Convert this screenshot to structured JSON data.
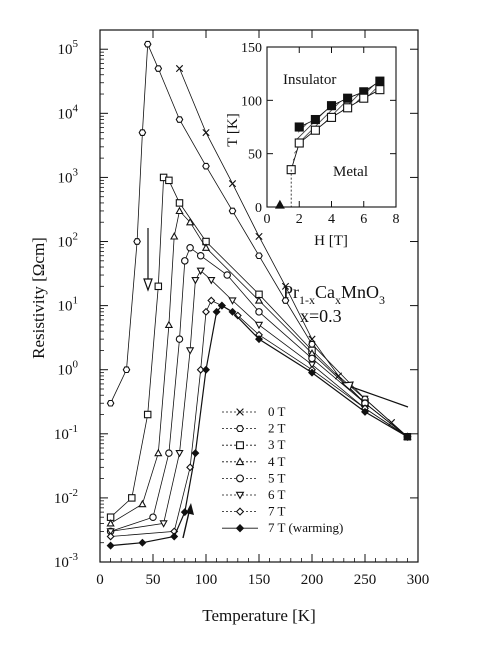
{
  "chart_data": [
    {
      "type": "scatter",
      "xlabel": "Temperature [K]",
      "ylabel": "Resistivity [Ωcm]",
      "xlim": [
        0,
        300
      ],
      "ylim_log10": [
        -3,
        5.3
      ],
      "y_scale": "log",
      "x_ticks": [
        "0",
        "50",
        "100",
        "150",
        "200",
        "250",
        "300"
      ],
      "y_ticks": [
        {
          "base": "10",
          "exp": "-3"
        },
        {
          "base": "10",
          "exp": "-2"
        },
        {
          "base": "10",
          "exp": "-1"
        },
        {
          "base": "10",
          "exp": "0"
        },
        {
          "base": "10",
          "exp": "1"
        },
        {
          "base": "10",
          "exp": "2"
        },
        {
          "base": "10",
          "exp": "3"
        },
        {
          "base": "10",
          "exp": "4"
        },
        {
          "base": "10",
          "exp": "5"
        }
      ],
      "grid": false,
      "legend_position": "bottom-center",
      "annotation": {
        "formula_main": "Pr",
        "formula_sub1": "1-x",
        "formula_mid": "Ca",
        "formula_sub2": "x",
        "formula_end": "MnO",
        "formula_sub3": "3",
        "composition": "x=0.3"
      },
      "series": [
        {
          "name": "0 T",
          "marker": "x",
          "x": [
            75,
            100,
            125,
            150,
            175,
            200,
            225,
            250,
            275,
            290
          ],
          "y": [
            50000,
            5000,
            800,
            120,
            20,
            3,
            0.8,
            0.35,
            0.15,
            0.09
          ]
        },
        {
          "name": "2 T",
          "marker": "hexagon",
          "x": [
            10,
            25,
            35,
            40,
            45,
            55,
            75,
            100,
            125,
            150,
            175,
            200,
            250,
            290
          ],
          "y": [
            0.3,
            1,
            100,
            5000,
            120000,
            50000,
            8000,
            1500,
            300,
            60,
            12,
            2.5,
            0.35,
            0.09
          ]
        },
        {
          "name": "3 T",
          "marker": "square",
          "x": [
            10,
            30,
            45,
            55,
            60,
            65,
            75,
            100,
            150,
            200,
            250,
            290
          ],
          "y": [
            0.005,
            0.01,
            0.2,
            20,
            1000,
            900,
            400,
            100,
            15,
            2,
            0.3,
            0.09
          ]
        },
        {
          "name": "4 T",
          "marker": "triangle-up",
          "x": [
            10,
            40,
            55,
            65,
            70,
            75,
            85,
            100,
            150,
            200,
            250,
            290
          ],
          "y": [
            0.004,
            0.008,
            0.05,
            5,
            120,
            300,
            200,
            80,
            12,
            1.8,
            0.3,
            0.09
          ]
        },
        {
          "name": "5 T",
          "marker": "circle",
          "x": [
            10,
            50,
            65,
            75,
            80,
            85,
            95,
            120,
            150,
            200,
            250,
            290
          ],
          "y": [
            0.003,
            0.005,
            0.05,
            3,
            50,
            80,
            60,
            30,
            8,
            1.5,
            0.3,
            0.09
          ]
        },
        {
          "name": "6 T",
          "marker": "triangle-down",
          "x": [
            10,
            60,
            75,
            85,
            90,
            95,
            105,
            125,
            150,
            200,
            250,
            290
          ],
          "y": [
            0.003,
            0.004,
            0.05,
            2,
            25,
            35,
            25,
            12,
            5,
            1.2,
            0.25,
            0.09
          ]
        },
        {
          "name": "7 T",
          "marker": "diamond-open",
          "x": [
            10,
            70,
            85,
            95,
            100,
            105,
            115,
            130,
            150,
            200,
            250,
            290
          ],
          "y": [
            0.0025,
            0.003,
            0.03,
            1,
            8,
            12,
            10,
            7,
            3.5,
            1,
            0.25,
            0.09
          ]
        },
        {
          "name": "7 T  (warming)",
          "marker": "diamond-filled",
          "x": [
            10,
            40,
            70,
            80,
            90,
            100,
            110,
            115,
            125,
            150,
            200,
            250,
            290
          ],
          "y": [
            0.0018,
            0.002,
            0.0025,
            0.006,
            0.05,
            1,
            8,
            10,
            8,
            3,
            0.9,
            0.22,
            0.09
          ]
        }
      ]
    },
    {
      "type": "scatter",
      "xlabel": "H [T]",
      "ylabel": "T [K]",
      "xlim": [
        0,
        8
      ],
      "ylim": [
        0,
        150
      ],
      "x_ticks": [
        "0",
        "2",
        "4",
        "6",
        "8"
      ],
      "y_ticks": [
        "0",
        "50",
        "100",
        "150"
      ],
      "region_labels": {
        "upper": "Insulator",
        "lower": "Metal"
      },
      "series": [
        {
          "name": "",
          "marker": "square-filled",
          "x": [
            2,
            3,
            4,
            5,
            6,
            7
          ],
          "y": [
            75,
            82,
            95,
            102,
            108,
            118
          ]
        },
        {
          "name": "",
          "marker": "square-open",
          "x": [
            1.5,
            2,
            3,
            4,
            5,
            6,
            7
          ],
          "y": [
            35,
            60,
            72,
            84,
            93,
            102,
            110
          ]
        },
        {
          "name": "",
          "marker": "triangle-filled",
          "x": [
            0.8
          ],
          "y": [
            2
          ]
        }
      ]
    }
  ]
}
